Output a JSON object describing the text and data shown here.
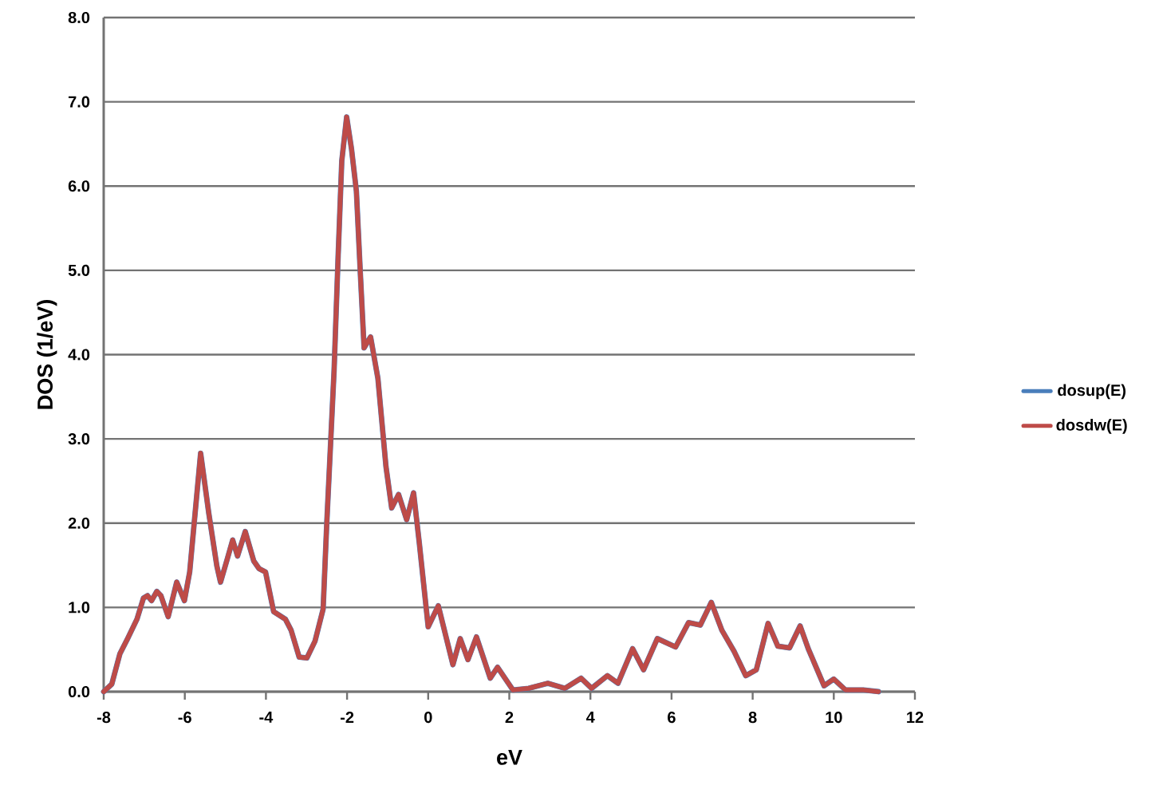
{
  "chart_data": {
    "type": "line",
    "xlabel": "eV",
    "ylabel": "DOS (1/eV)",
    "x": [
      -8.0,
      -7.8,
      -7.6,
      -7.41,
      -7.18,
      -7.02,
      -6.92,
      -6.82,
      -6.69,
      -6.59,
      -6.41,
      -6.2,
      -6.01,
      -5.88,
      -5.61,
      -5.41,
      -5.21,
      -5.12,
      -4.95,
      -4.82,
      -4.7,
      -4.51,
      -4.3,
      -4.17,
      -4.01,
      -3.81,
      -3.52,
      -3.38,
      -3.18,
      -2.99,
      -2.79,
      -2.59,
      -2.5,
      -2.32,
      -2.22,
      -2.13,
      -2.01,
      -1.89,
      -1.77,
      -1.67,
      -1.58,
      -1.42,
      -1.24,
      -1.04,
      -0.9,
      -0.73,
      -0.53,
      -0.36,
      -0.22,
      0.0,
      0.25,
      0.61,
      0.79,
      0.98,
      1.19,
      1.53,
      1.71,
      2.09,
      2.48,
      2.95,
      3.37,
      3.77,
      4.03,
      4.42,
      4.68,
      5.04,
      5.31,
      5.65,
      5.83,
      6.1,
      6.42,
      6.71,
      6.98,
      7.24,
      7.54,
      7.83,
      8.09,
      8.38,
      8.62,
      8.91,
      9.17,
      9.37,
      9.76,
      10.0,
      10.29,
      10.74,
      11.1
    ],
    "series": [
      {
        "name": "dosup(E)",
        "color": "#4a7ebb",
        "values": [
          0.0,
          0.09,
          0.45,
          0.63,
          0.86,
          1.11,
          1.14,
          1.08,
          1.19,
          1.14,
          0.89,
          1.3,
          1.08,
          1.42,
          2.83,
          2.12,
          1.49,
          1.3,
          1.58,
          1.8,
          1.61,
          1.9,
          1.55,
          1.46,
          1.42,
          0.95,
          0.86,
          0.73,
          0.41,
          0.4,
          0.6,
          0.98,
          2.0,
          3.81,
          5.17,
          6.3,
          6.82,
          6.44,
          5.94,
          4.94,
          4.08,
          4.21,
          3.72,
          2.67,
          2.18,
          2.34,
          2.04,
          2.36,
          1.77,
          0.77,
          1.02,
          0.32,
          0.63,
          0.38,
          0.65,
          0.16,
          0.29,
          0.02,
          0.04,
          0.1,
          0.04,
          0.16,
          0.04,
          0.19,
          0.1,
          0.51,
          0.26,
          0.63,
          0.59,
          0.53,
          0.82,
          0.79,
          1.06,
          0.73,
          0.48,
          0.19,
          0.26,
          0.81,
          0.54,
          0.52,
          0.78,
          0.51,
          0.07,
          0.15,
          0.02,
          0.02,
          0.0
        ]
      },
      {
        "name": "dosdw(E)",
        "color": "#be4b48",
        "values": [
          0.0,
          0.09,
          0.45,
          0.63,
          0.86,
          1.11,
          1.14,
          1.08,
          1.19,
          1.14,
          0.89,
          1.3,
          1.08,
          1.42,
          2.83,
          2.12,
          1.49,
          1.3,
          1.58,
          1.8,
          1.61,
          1.9,
          1.55,
          1.46,
          1.42,
          0.95,
          0.86,
          0.73,
          0.41,
          0.4,
          0.6,
          0.98,
          2.0,
          3.81,
          5.17,
          6.3,
          6.82,
          6.44,
          5.94,
          4.94,
          4.08,
          4.21,
          3.72,
          2.67,
          2.18,
          2.34,
          2.04,
          2.36,
          1.77,
          0.77,
          1.02,
          0.32,
          0.63,
          0.38,
          0.65,
          0.16,
          0.29,
          0.02,
          0.04,
          0.1,
          0.04,
          0.16,
          0.04,
          0.19,
          0.1,
          0.51,
          0.26,
          0.63,
          0.59,
          0.53,
          0.82,
          0.79,
          1.06,
          0.73,
          0.48,
          0.19,
          0.26,
          0.81,
          0.54,
          0.52,
          0.78,
          0.51,
          0.07,
          0.15,
          0.02,
          0.02,
          0.0
        ]
      }
    ],
    "xlim": [
      -8,
      12
    ],
    "xticks": [
      -8,
      -6,
      -4,
      -2,
      0,
      2,
      4,
      6,
      8,
      10,
      12
    ],
    "ylim": [
      0,
      8
    ],
    "yticks": [
      {
        "value": 0,
        "label": "0.0"
      },
      {
        "value": 1,
        "label": "1.0"
      },
      {
        "value": 2,
        "label": "2.0"
      },
      {
        "value": 3,
        "label": "3.0"
      },
      {
        "value": 4,
        "label": "4.0"
      },
      {
        "value": 5,
        "label": "5.0"
      },
      {
        "value": 6,
        "label": "6.0"
      },
      {
        "value": 7,
        "label": "7.0"
      },
      {
        "value": 8,
        "label": "8.0"
      }
    ],
    "grid": "y",
    "legend": "right"
  }
}
